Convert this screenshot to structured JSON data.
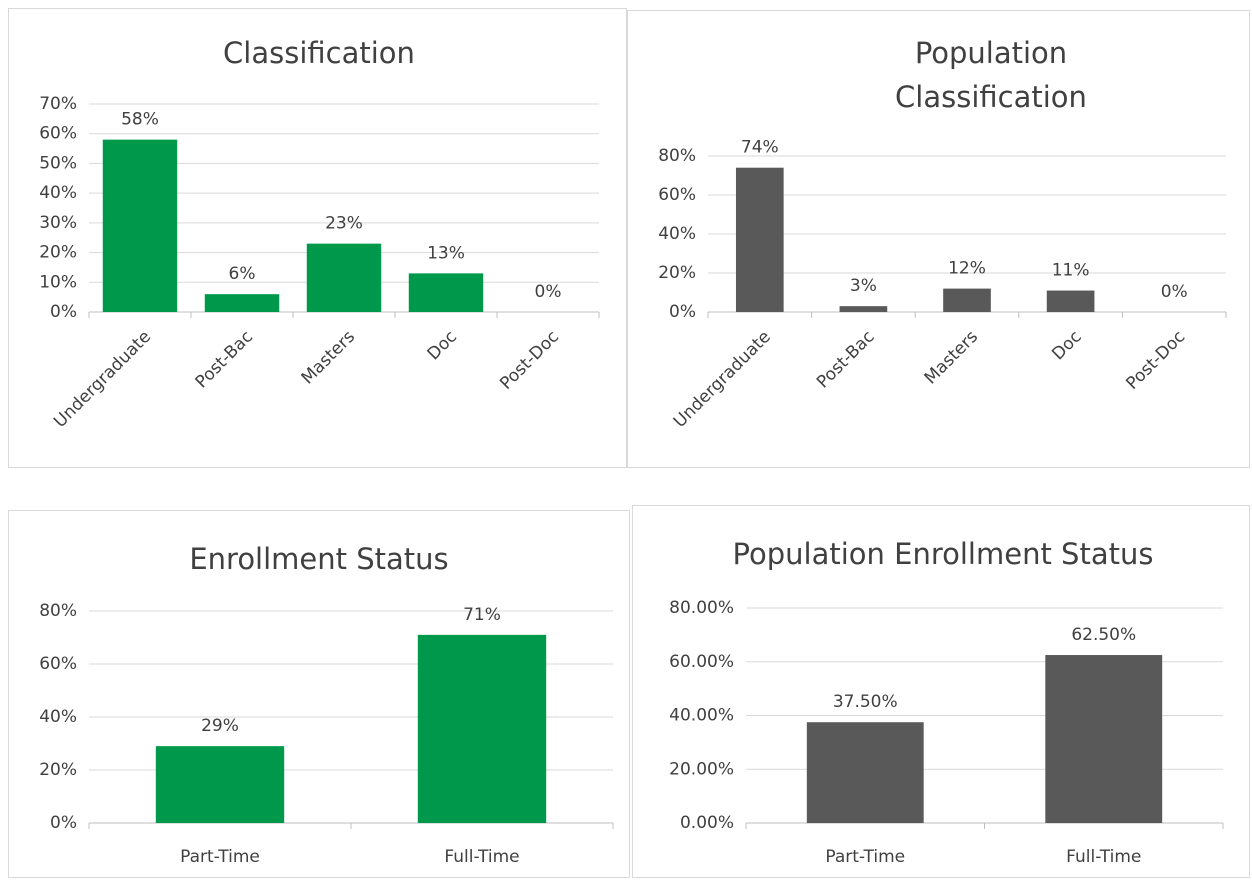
{
  "chart_data": [
    {
      "type": "bar",
      "title": "Classification",
      "categories": [
        "Undergraduate",
        "Post-Bac",
        "Masters",
        "Doc",
        "Post-Doc"
      ],
      "values": [
        58,
        6,
        23,
        13,
        0
      ],
      "value_labels": [
        "58%",
        "6%",
        "23%",
        "13%",
        "0%"
      ],
      "color": "#00994c",
      "ylim": [
        0,
        70
      ],
      "yticks": [
        {
          "value": 0,
          "label": "0%"
        },
        {
          "value": 10,
          "label": "10%"
        },
        {
          "value": 20,
          "label": "20%"
        },
        {
          "value": 30,
          "label": "30%"
        },
        {
          "value": 40,
          "label": "40%"
        },
        {
          "value": 50,
          "label": "50%"
        },
        {
          "value": 60,
          "label": "60%"
        },
        {
          "value": 70,
          "label": "70%"
        }
      ],
      "grid": true
    },
    {
      "type": "bar",
      "title": "Population Classification",
      "categories": [
        "Undergraduate",
        "Post-Bac",
        "Masters",
        "Doc",
        "Post-Doc"
      ],
      "values": [
        74,
        3,
        12,
        11,
        0
      ],
      "value_labels": [
        "74%",
        "3%",
        "12%",
        "11%",
        "0%"
      ],
      "color": "#595959",
      "ylim": [
        0,
        80
      ],
      "yticks": [
        {
          "value": 0,
          "label": "0%"
        },
        {
          "value": 20,
          "label": "20%"
        },
        {
          "value": 40,
          "label": "40%"
        },
        {
          "value": 60,
          "label": "60%"
        },
        {
          "value": 80,
          "label": "80%"
        }
      ],
      "grid": true
    },
    {
      "type": "bar",
      "title": "Enrollment Status",
      "categories": [
        "Part-Time",
        "Full-Time"
      ],
      "values": [
        29,
        71
      ],
      "value_labels": [
        "29%",
        "71%"
      ],
      "color": "#00994c",
      "ylim": [
        0,
        80
      ],
      "yticks": [
        {
          "value": 0,
          "label": "0%"
        },
        {
          "value": 20,
          "label": "20%"
        },
        {
          "value": 40,
          "label": "40%"
        },
        {
          "value": 60,
          "label": "60%"
        },
        {
          "value": 80,
          "label": "80%"
        }
      ],
      "grid": true
    },
    {
      "type": "bar",
      "title": "Population Enrollment Status",
      "categories": [
        "Part-Time",
        "Full-Time"
      ],
      "values": [
        37.5,
        62.5
      ],
      "value_labels": [
        "37.50%",
        "62.50%"
      ],
      "color": "#595959",
      "ylim": [
        0,
        80
      ],
      "yticks": [
        {
          "value": 0,
          "label": "0.00%"
        },
        {
          "value": 20,
          "label": "20.00%"
        },
        {
          "value": 40,
          "label": "40.00%"
        },
        {
          "value": 60,
          "label": "60.00%"
        },
        {
          "value": 80,
          "label": "80.00%"
        }
      ],
      "grid": true
    }
  ]
}
